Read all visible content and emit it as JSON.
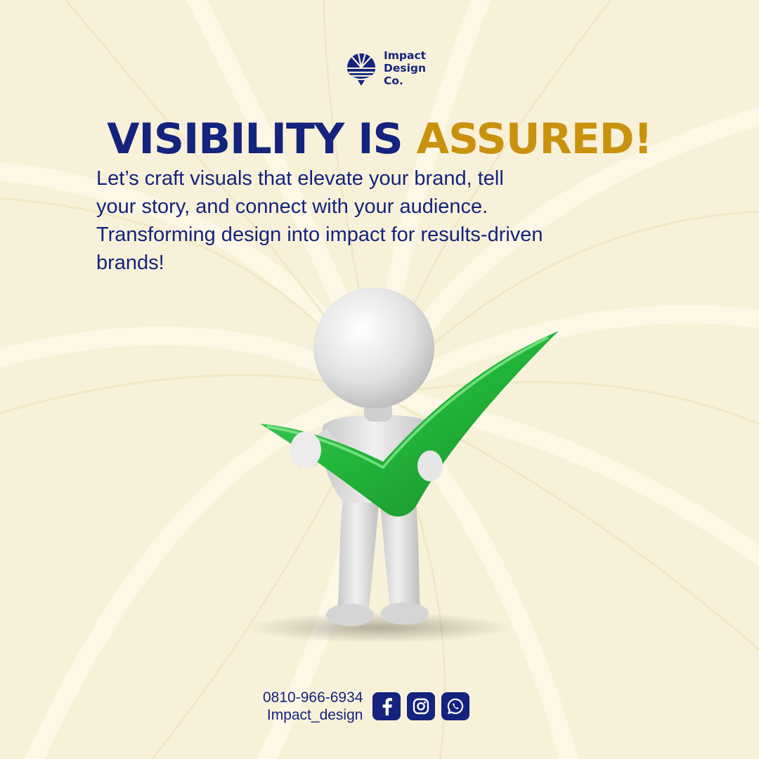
{
  "brand": {
    "logo_lines": [
      "Impact",
      "Design",
      "Co."
    ],
    "navy": "#14237e",
    "gold": "#c9920e",
    "background": "#f8f1d9"
  },
  "headline": {
    "part_1": "VISIBILITY IS",
    "part_2": "ASSURED!"
  },
  "body": {
    "lines": [
      "Let’s craft visuals that elevate your brand, tell",
      "your story, and connect with your audience.",
      "Transforming design into impact for results-driven",
      "brands!"
    ]
  },
  "illustration": {
    "subject": "3d-figure-holding-checkmark",
    "check_color": "#22b53a"
  },
  "footer": {
    "phone": "0810-966-6934",
    "handle": "Impact_design",
    "social_icons": [
      "facebook-icon",
      "instagram-icon",
      "whatsapp-icon"
    ]
  }
}
